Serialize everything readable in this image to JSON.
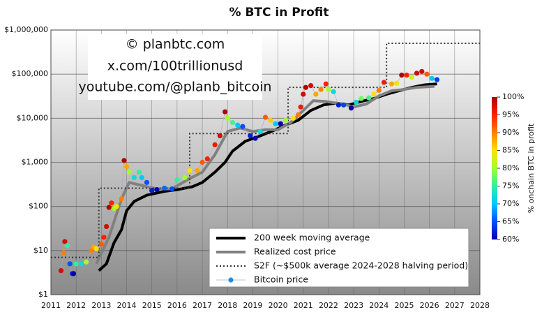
{
  "chart_data": {
    "type": "scatter",
    "title": "% BTC in Profit",
    "annotations": [
      "© planbtc.com",
      "x.com/100trillionusd",
      "youtube.com/@planb_bitcoin"
    ],
    "log_y": true,
    "grid": true,
    "legend": "lower right",
    "xlim": [
      2011,
      2028
    ],
    "xticks": [
      2011,
      2012,
      2013,
      2014,
      2015,
      2016,
      2017,
      2018,
      2019,
      2020,
      2021,
      2022,
      2023,
      2024,
      2025,
      2026,
      2027,
      2028
    ],
    "ylim": [
      1,
      1000000
    ],
    "yticks": [
      {
        "value": 1,
        "label": "$1"
      },
      {
        "value": 10,
        "label": "$10"
      },
      {
        "value": 100,
        "label": "$100"
      },
      {
        "value": 1000,
        "label": "$1,000"
      },
      {
        "value": 10000,
        "label": "$10,000"
      },
      {
        "value": 100000,
        "label": "$100,000"
      },
      {
        "value": 1000000,
        "label": "$1,000,000"
      }
    ],
    "colorbar": {
      "label": "% onchain BTC in profit",
      "clim": [
        60,
        100
      ],
      "ticks": [
        {
          "value": 60,
          "label": "60%"
        },
        {
          "value": 65,
          "label": "65%"
        },
        {
          "value": 70,
          "label": "70%"
        },
        {
          "value": 75,
          "label": "75%"
        },
        {
          "value": 80,
          "label": "80%"
        },
        {
          "value": 85,
          "label": "85%"
        },
        {
          "value": 90,
          "label": "90%"
        },
        {
          "value": 95,
          "label": "95%"
        },
        {
          "value": 100,
          "label": "100%"
        }
      ],
      "colors": [
        "#0000b0",
        "#0050ff",
        "#00c8ff",
        "#30f0a0",
        "#a0ff30",
        "#ffe000",
        "#ff8000",
        "#ff2000",
        "#b00000"
      ]
    },
    "series": [
      {
        "name": "200 week moving average",
        "kind": "line",
        "color": "#000000",
        "width": 4,
        "x": [
          2012.9,
          2013.2,
          2013.5,
          2013.8,
          2014.0,
          2014.3,
          2014.8,
          2015.5,
          2016.0,
          2016.6,
          2017.0,
          2017.5,
          2017.9,
          2018.2,
          2018.7,
          2019.3,
          2019.9,
          2020.3,
          2020.8,
          2021.3,
          2021.8,
          2022.3,
          2022.8,
          2023.3,
          2023.8,
          2024.3,
          2024.8,
          2025.3,
          2025.8,
          2026.3
        ],
        "values": [
          3.5,
          5,
          15,
          30,
          80,
          130,
          180,
          220,
          240,
          280,
          350,
          600,
          1000,
          1800,
          3000,
          4000,
          5500,
          7000,
          9000,
          15000,
          20000,
          22000,
          20000,
          24000,
          28000,
          35000,
          42000,
          50000,
          57000,
          60000
        ]
      },
      {
        "name": "Realized cost price",
        "kind": "line",
        "color": "#808080",
        "width": 4,
        "x": [
          2012.8,
          2013.3,
          2013.8,
          2014.1,
          2014.6,
          2015.2,
          2015.8,
          2016.4,
          2017.0,
          2017.5,
          2018.0,
          2018.5,
          2019.0,
          2019.5,
          2020.0,
          2020.5,
          2021.0,
          2021.4,
          2021.9,
          2022.3,
          2022.7,
          2023.0,
          2023.5,
          2024.0,
          2024.5,
          2025.0,
          2025.5,
          2026.2
        ],
        "values": [
          5,
          20,
          150,
          350,
          300,
          250,
          250,
          400,
          600,
          1500,
          5000,
          6000,
          5000,
          5500,
          5500,
          8000,
          15000,
          25000,
          24000,
          22000,
          20000,
          18000,
          21000,
          32000,
          42000,
          45000,
          50000,
          53000
        ]
      },
      {
        "name": "S2F (~$500k average 2024-2028 halving period)",
        "kind": "dotted",
        "color": "#333333",
        "width": 2,
        "x": [
          2011,
          2012.9,
          2012.9,
          2016.5,
          2016.5,
          2020.4,
          2020.4,
          2024.3,
          2024.3,
          2028
        ],
        "values": [
          7,
          7,
          260,
          260,
          4500,
          4500,
          50000,
          50000,
          500000,
          500000
        ]
      },
      {
        "name": "Bitcoin price",
        "kind": "points",
        "color": "#1f8fe0",
        "x": [
          2011.4,
          2011.5,
          2011.55,
          2011.65,
          2011.75,
          2011.85,
          2011.9,
          2012.0,
          2012.2,
          2012.4,
          2012.6,
          2012.7,
          2012.8,
          2013.0,
          2013.1,
          2013.2,
          2013.3,
          2013.4,
          2013.5,
          2013.6,
          2013.8,
          2013.9,
          2014.0,
          2014.1,
          2014.3,
          2014.5,
          2014.6,
          2014.8,
          2015.0,
          2015.2,
          2015.5,
          2015.8,
          2016.0,
          2016.3,
          2016.5,
          2016.8,
          2017.0,
          2017.2,
          2017.5,
          2017.7,
          2017.9,
          2018.0,
          2018.2,
          2018.4,
          2018.6,
          2018.9,
          2019.1,
          2019.3,
          2019.5,
          2019.7,
          2019.9,
          2020.1,
          2020.3,
          2020.6,
          2020.8,
          2020.9,
          2021.0,
          2021.1,
          2021.3,
          2021.5,
          2021.7,
          2021.9,
          2022.0,
          2022.2,
          2022.4,
          2022.6,
          2022.9,
          2023.1,
          2023.3,
          2023.6,
          2023.8,
          2024.0,
          2024.2,
          2024.5,
          2024.7,
          2024.9,
          2025.1,
          2025.3,
          2025.5,
          2025.7,
          2025.9,
          2026.1,
          2026.3
        ],
        "values": [
          3.5,
          9,
          16,
          13,
          5,
          3,
          3,
          5,
          5,
          5.5,
          10,
          12,
          11,
          14,
          20,
          35,
          95,
          120,
          90,
          100,
          150,
          1100,
          800,
          600,
          450,
          600,
          450,
          350,
          230,
          240,
          260,
          250,
          400,
          450,
          650,
          650,
          1000,
          1200,
          2500,
          4000,
          14000,
          10000,
          8000,
          7000,
          6500,
          4000,
          3500,
          5000,
          10500,
          9000,
          7500,
          7500,
          9000,
          10000,
          12000,
          18000,
          35000,
          50000,
          55000,
          35000,
          45000,
          60000,
          45000,
          40000,
          20000,
          20000,
          17000,
          23000,
          28000,
          29000,
          35000,
          43000,
          65000,
          60000,
          62000,
          95000,
          95000,
          85000,
          105000,
          115000,
          100000,
          80000,
          75000
        ],
        "profit": [
          98,
          90,
          98,
          75,
          65,
          62,
          60,
          75,
          72,
          80,
          90,
          88,
          85,
          92,
          95,
          98,
          100,
          95,
          80,
          85,
          90,
          100,
          88,
          80,
          72,
          75,
          70,
          65,
          62,
          60,
          66,
          65,
          75,
          80,
          85,
          88,
          92,
          95,
          96,
          98,
          100,
          80,
          76,
          70,
          65,
          62,
          60,
          72,
          92,
          86,
          70,
          60,
          80,
          85,
          90,
          96,
          98,
          100,
          98,
          88,
          90,
          95,
          80,
          72,
          62,
          64,
          60,
          72,
          78,
          76,
          85,
          90,
          96,
          88,
          84,
          100,
          95,
          82,
          98,
          98,
          92,
          70,
          64
        ]
      }
    ]
  }
}
